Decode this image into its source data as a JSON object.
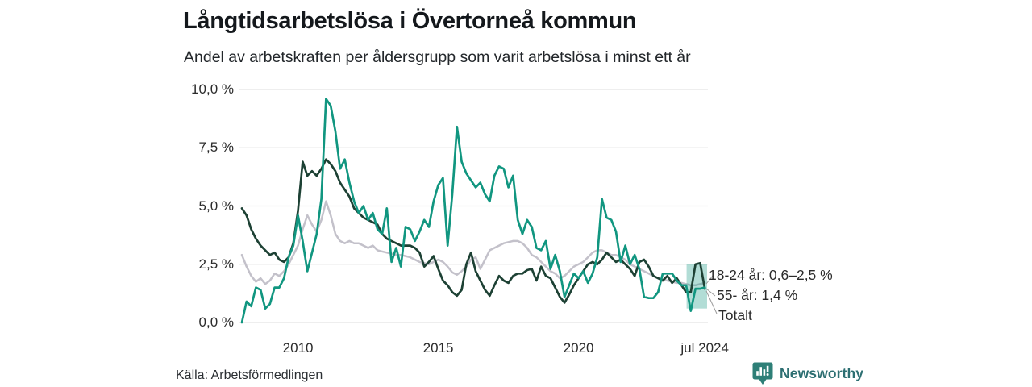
{
  "title": "Långtidsarbetslösa i Övertorneå kommun",
  "subtitle": "Andel av arbetskraften per åldersgrupp som varit arbetslösa i minst ett år",
  "source": "Källa: Arbetsförmedlingen",
  "branding": {
    "name": "Newsworthy",
    "logo_icon": "newsworthy-bar-chart-bubble-icon",
    "logo_color": "#2e7f77",
    "text_color": "#2d6f72"
  },
  "chart_data": {
    "type": "line",
    "title": "Långtidsarbetslösa i Övertorneå kommun",
    "subtitle": "Andel av arbetskraften per åldersgrupp som varit arbetslösa i minst ett år",
    "unit": "%",
    "grid": "horizontal",
    "xlim": [
      2008.0,
      2024.58
    ],
    "ylim": [
      0,
      10
    ],
    "x_start_year": 2008.0,
    "x_step_years": 0.166667,
    "x_ticks": [
      {
        "value": 2010.0,
        "label": "2010"
      },
      {
        "value": 2015.0,
        "label": "2015"
      },
      {
        "value": 2020.0,
        "label": "2020"
      },
      {
        "value": 2024.5,
        "label": "jul 2024"
      }
    ],
    "y_ticks": [
      {
        "value": 0.0,
        "label": "0,0 %"
      },
      {
        "value": 2.5,
        "label": "2,5 %"
      },
      {
        "value": 5.0,
        "label": "5,0 %"
      },
      {
        "value": 7.5,
        "label": "7,5 %"
      },
      {
        "value": 10.0,
        "label": "10,0 %"
      }
    ],
    "series": [
      {
        "name": "18-24 år",
        "color": "#119680",
        "end_label": "18-24 år: 0,6–2,5 %",
        "values": [
          0.0,
          0.9,
          0.7,
          1.5,
          1.4,
          0.6,
          0.8,
          1.5,
          1.5,
          1.9,
          2.8,
          3.3,
          4.6,
          3.5,
          2.2,
          3.0,
          3.8,
          5.3,
          9.6,
          9.3,
          8.2,
          6.6,
          7.0,
          6.0,
          5.2,
          4.7,
          5.0,
          4.4,
          4.7,
          4.0,
          3.8,
          4.9,
          2.6,
          3.2,
          2.4,
          4.1,
          4.0,
          3.5,
          3.9,
          4.4,
          4.1,
          5.2,
          5.9,
          6.2,
          3.3,
          5.5,
          8.4,
          6.9,
          6.4,
          6.1,
          5.8,
          6.0,
          5.5,
          5.2,
          6.3,
          6.7,
          6.6,
          5.8,
          6.3,
          4.4,
          3.8,
          4.4,
          4.1,
          3.2,
          3.1,
          3.5,
          2.3,
          2.9,
          2.2,
          1.1,
          1.6,
          2.1,
          1.9,
          2.2,
          1.7,
          2.1,
          2.8,
          5.3,
          4.5,
          4.4,
          3.9,
          2.6,
          3.3,
          2.5,
          2.9,
          2.3,
          1.1,
          1.05,
          1.05,
          1.3,
          2.1,
          2.1,
          2.1,
          1.8,
          1.6,
          1.6,
          0.5,
          1.45,
          1.45,
          1.5
        ]
      },
      {
        "name": "55- år",
        "color": "#1d4134",
        "end_label": "55- år: 1,4 %",
        "values": [
          4.9,
          4.6,
          4.0,
          3.6,
          3.3,
          3.1,
          2.9,
          3.0,
          2.7,
          2.6,
          2.8,
          3.4,
          4.8,
          6.9,
          6.3,
          6.5,
          6.3,
          6.6,
          7.0,
          6.8,
          6.5,
          6.0,
          5.7,
          5.4,
          4.9,
          4.7,
          4.5,
          4.4,
          4.3,
          4.2,
          3.8,
          3.6,
          3.5,
          3.4,
          3.3,
          3.3,
          3.3,
          3.2,
          3.0,
          2.4,
          2.6,
          2.85,
          2.3,
          1.8,
          1.6,
          1.3,
          1.15,
          1.4,
          2.5,
          3.0,
          2.2,
          1.8,
          1.4,
          1.15,
          1.6,
          2.0,
          1.8,
          1.7,
          2.0,
          2.1,
          2.1,
          2.25,
          2.3,
          1.8,
          2.4,
          2.0,
          1.9,
          1.5,
          1.1,
          0.85,
          1.2,
          1.6,
          1.9,
          2.2,
          2.5,
          2.6,
          2.5,
          2.7,
          3.0,
          2.8,
          2.6,
          2.7,
          2.5,
          2.3,
          2.0,
          2.6,
          2.7,
          2.4,
          2.0,
          1.9,
          1.8,
          2.0,
          1.7,
          1.9,
          1.6,
          1.3,
          1.3,
          2.5,
          2.55,
          1.45
        ]
      },
      {
        "name": "Totalt",
        "color": "#c3c1ca",
        "end_label": "Totalt",
        "values": [
          2.9,
          2.4,
          2.0,
          1.75,
          1.9,
          1.65,
          1.8,
          2.1,
          2.0,
          2.2,
          2.5,
          2.9,
          3.3,
          4.0,
          4.6,
          4.2,
          3.9,
          4.4,
          5.2,
          4.6,
          3.8,
          3.5,
          3.4,
          3.5,
          3.4,
          3.4,
          3.3,
          3.2,
          3.3,
          3.1,
          3.05,
          3.0,
          2.95,
          2.9,
          2.9,
          2.85,
          2.8,
          2.7,
          2.6,
          2.55,
          2.5,
          2.6,
          2.7,
          2.6,
          2.4,
          2.15,
          2.05,
          2.2,
          2.4,
          2.7,
          2.8,
          2.3,
          2.7,
          3.1,
          3.2,
          3.3,
          3.4,
          3.45,
          3.5,
          3.5,
          3.4,
          3.2,
          2.9,
          2.8,
          2.6,
          2.4,
          2.2,
          2.1,
          1.9,
          2.0,
          2.2,
          2.4,
          2.5,
          2.6,
          2.8,
          3.0,
          3.1,
          3.1,
          3.0,
          2.9,
          2.9,
          2.8,
          2.7,
          2.5,
          2.4,
          2.3,
          2.2,
          2.1,
          2.0,
          1.9,
          1.85,
          1.8,
          1.75,
          1.7,
          1.7,
          1.65,
          1.6,
          1.6,
          1.65,
          1.7
        ]
      }
    ],
    "uncertainty_band": {
      "series": "18-24 år",
      "x_from": 2023.85,
      "x_to": 2024.58,
      "y_from": 0.6,
      "y_to": 2.5,
      "color": "#119680",
      "opacity": 0.32
    },
    "legend_position": "end-of-line-labels"
  }
}
